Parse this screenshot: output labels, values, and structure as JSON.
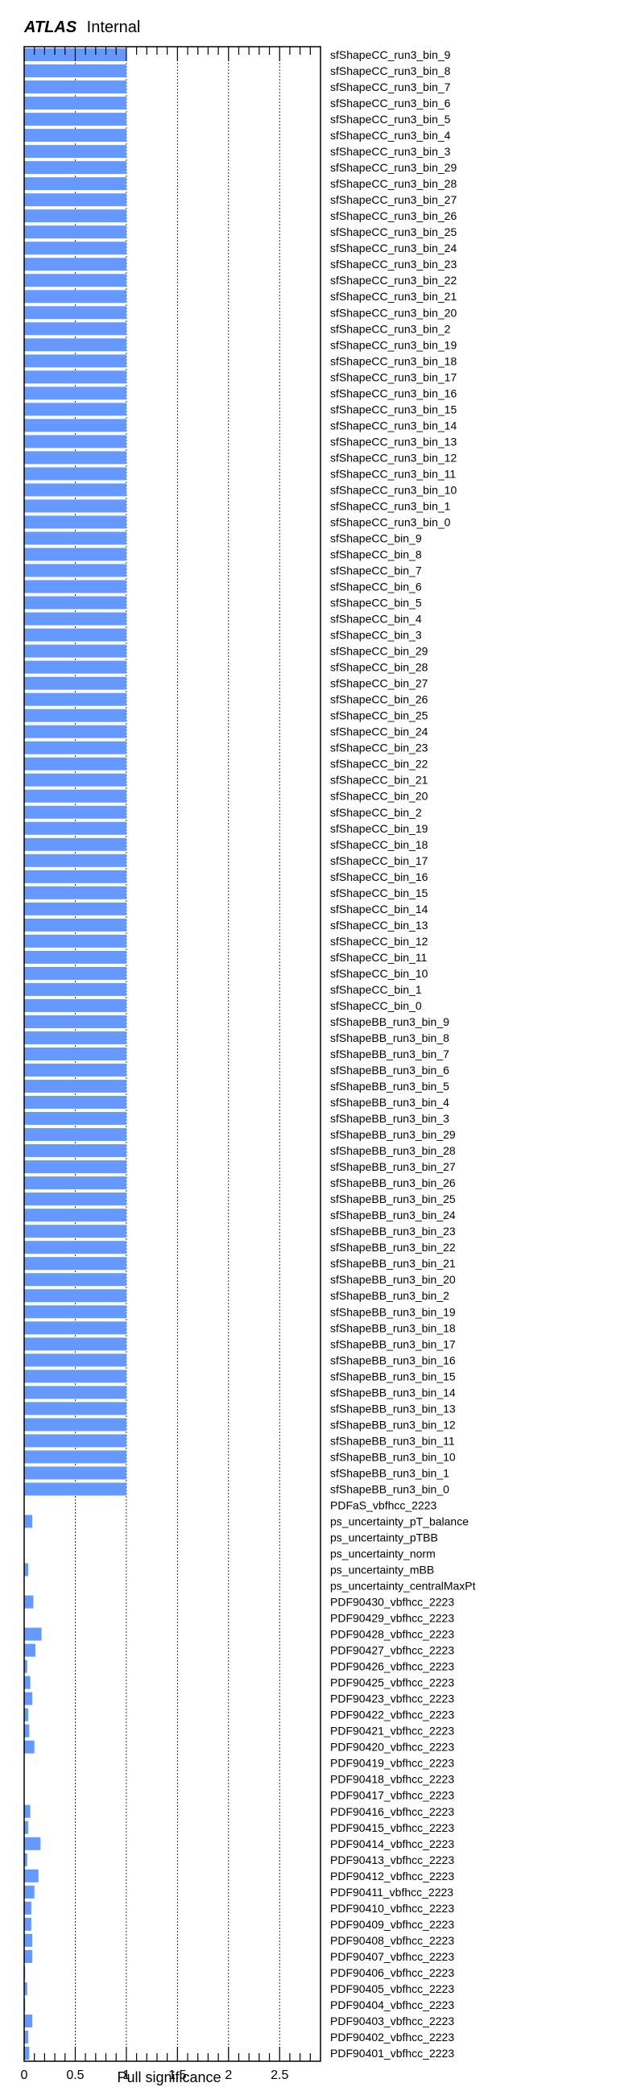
{
  "header": {
    "experiment": "ATLAS",
    "status": "Internal"
  },
  "chart_data": {
    "type": "bar",
    "orientation": "horizontal",
    "xlabel": "Pull significance",
    "xlim": [
      0,
      2.9
    ],
    "xticks": [
      "0",
      "0.5",
      "1",
      "1.5",
      "2",
      "2.5"
    ],
    "grid": "vertical dotted at 0.5, 1, 1.5, 2, 2.5",
    "bar_color": "#6699ff",
    "categories": [
      "sfShapeCC_run3_bin_9",
      "sfShapeCC_run3_bin_8",
      "sfShapeCC_run3_bin_7",
      "sfShapeCC_run3_bin_6",
      "sfShapeCC_run3_bin_5",
      "sfShapeCC_run3_bin_4",
      "sfShapeCC_run3_bin_3",
      "sfShapeCC_run3_bin_29",
      "sfShapeCC_run3_bin_28",
      "sfShapeCC_run3_bin_27",
      "sfShapeCC_run3_bin_26",
      "sfShapeCC_run3_bin_25",
      "sfShapeCC_run3_bin_24",
      "sfShapeCC_run3_bin_23",
      "sfShapeCC_run3_bin_22",
      "sfShapeCC_run3_bin_21",
      "sfShapeCC_run3_bin_20",
      "sfShapeCC_run3_bin_2",
      "sfShapeCC_run3_bin_19",
      "sfShapeCC_run3_bin_18",
      "sfShapeCC_run3_bin_17",
      "sfShapeCC_run3_bin_16",
      "sfShapeCC_run3_bin_15",
      "sfShapeCC_run3_bin_14",
      "sfShapeCC_run3_bin_13",
      "sfShapeCC_run3_bin_12",
      "sfShapeCC_run3_bin_11",
      "sfShapeCC_run3_bin_10",
      "sfShapeCC_run3_bin_1",
      "sfShapeCC_run3_bin_0",
      "sfShapeCC_bin_9",
      "sfShapeCC_bin_8",
      "sfShapeCC_bin_7",
      "sfShapeCC_bin_6",
      "sfShapeCC_bin_5",
      "sfShapeCC_bin_4",
      "sfShapeCC_bin_3",
      "sfShapeCC_bin_29",
      "sfShapeCC_bin_28",
      "sfShapeCC_bin_27",
      "sfShapeCC_bin_26",
      "sfShapeCC_bin_25",
      "sfShapeCC_bin_24",
      "sfShapeCC_bin_23",
      "sfShapeCC_bin_22",
      "sfShapeCC_bin_21",
      "sfShapeCC_bin_20",
      "sfShapeCC_bin_2",
      "sfShapeCC_bin_19",
      "sfShapeCC_bin_18",
      "sfShapeCC_bin_17",
      "sfShapeCC_bin_16",
      "sfShapeCC_bin_15",
      "sfShapeCC_bin_14",
      "sfShapeCC_bin_13",
      "sfShapeCC_bin_12",
      "sfShapeCC_bin_11",
      "sfShapeCC_bin_10",
      "sfShapeCC_bin_1",
      "sfShapeCC_bin_0",
      "sfShapeBB_run3_bin_9",
      "sfShapeBB_run3_bin_8",
      "sfShapeBB_run3_bin_7",
      "sfShapeBB_run3_bin_6",
      "sfShapeBB_run3_bin_5",
      "sfShapeBB_run3_bin_4",
      "sfShapeBB_run3_bin_3",
      "sfShapeBB_run3_bin_29",
      "sfShapeBB_run3_bin_28",
      "sfShapeBB_run3_bin_27",
      "sfShapeBB_run3_bin_26",
      "sfShapeBB_run3_bin_25",
      "sfShapeBB_run3_bin_24",
      "sfShapeBB_run3_bin_23",
      "sfShapeBB_run3_bin_22",
      "sfShapeBB_run3_bin_21",
      "sfShapeBB_run3_bin_20",
      "sfShapeBB_run3_bin_2",
      "sfShapeBB_run3_bin_19",
      "sfShapeBB_run3_bin_18",
      "sfShapeBB_run3_bin_17",
      "sfShapeBB_run3_bin_16",
      "sfShapeBB_run3_bin_15",
      "sfShapeBB_run3_bin_14",
      "sfShapeBB_run3_bin_13",
      "sfShapeBB_run3_bin_12",
      "sfShapeBB_run3_bin_11",
      "sfShapeBB_run3_bin_10",
      "sfShapeBB_run3_bin_1",
      "sfShapeBB_run3_bin_0",
      "PDFaS_vbfhcc_2223",
      "ps_uncertainty_pT_balance",
      "ps_uncertainty_pTBB",
      "ps_uncertainty_norm",
      "ps_uncertainty_mBB",
      "ps_uncertainty_centralMaxPt",
      "PDF90430_vbfhcc_2223",
      "PDF90429_vbfhcc_2223",
      "PDF90428_vbfhcc_2223",
      "PDF90427_vbfhcc_2223",
      "PDF90426_vbfhcc_2223",
      "PDF90425_vbfhcc_2223",
      "PDF90423_vbfhcc_2223",
      "PDF90422_vbfhcc_2223",
      "PDF90421_vbfhcc_2223",
      "PDF90420_vbfhcc_2223",
      "PDF90419_vbfhcc_2223",
      "PDF90418_vbfhcc_2223",
      "PDF90417_vbfhcc_2223",
      "PDF90416_vbfhcc_2223",
      "PDF90415_vbfhcc_2223",
      "PDF90414_vbfhcc_2223",
      "PDF90413_vbfhcc_2223",
      "PDF90412_vbfhcc_2223",
      "PDF90411_vbfhcc_2223",
      "PDF90410_vbfhcc_2223",
      "PDF90409_vbfhcc_2223",
      "PDF90408_vbfhcc_2223",
      "PDF90407_vbfhcc_2223",
      "PDF90406_vbfhcc_2223",
      "PDF90405_vbfhcc_2223",
      "PDF90404_vbfhcc_2223",
      "PDF90403_vbfhcc_2223",
      "PDF90402_vbfhcc_2223",
      "PDF90401_vbfhcc_2223"
    ],
    "values": [
      1.0,
      1.0,
      1.0,
      1.0,
      1.0,
      1.0,
      1.0,
      1.0,
      1.0,
      1.0,
      1.0,
      1.0,
      1.0,
      1.0,
      1.0,
      1.0,
      1.0,
      1.0,
      1.0,
      1.0,
      1.0,
      1.0,
      1.0,
      1.0,
      1.0,
      1.0,
      1.0,
      1.0,
      1.0,
      1.0,
      1.0,
      1.0,
      1.0,
      1.0,
      1.0,
      1.0,
      1.0,
      1.0,
      1.0,
      1.0,
      1.0,
      1.0,
      1.0,
      1.0,
      1.0,
      1.0,
      1.0,
      1.0,
      1.0,
      1.0,
      1.0,
      1.0,
      1.0,
      1.0,
      1.0,
      1.0,
      1.0,
      1.0,
      1.0,
      1.0,
      1.0,
      1.0,
      1.0,
      1.0,
      1.0,
      1.0,
      1.0,
      1.0,
      1.0,
      1.0,
      1.0,
      1.0,
      1.0,
      1.0,
      1.0,
      1.0,
      1.0,
      1.0,
      1.0,
      1.0,
      1.0,
      1.0,
      1.0,
      1.0,
      1.0,
      1.0,
      1.0,
      1.0,
      1.0,
      1.0,
      0.0,
      0.08,
      0.0,
      0.0,
      0.04,
      0.0,
      0.09,
      0.0,
      0.17,
      0.11,
      0.03,
      0.06,
      0.08,
      0.04,
      0.05,
      0.1,
      0.0,
      0.0,
      0.0,
      0.06,
      0.04,
      0.16,
      0.03,
      0.14,
      0.1,
      0.07,
      0.07,
      0.08,
      0.08,
      0.01,
      0.03,
      0.01,
      0.08,
      0.04,
      0.05
    ]
  }
}
